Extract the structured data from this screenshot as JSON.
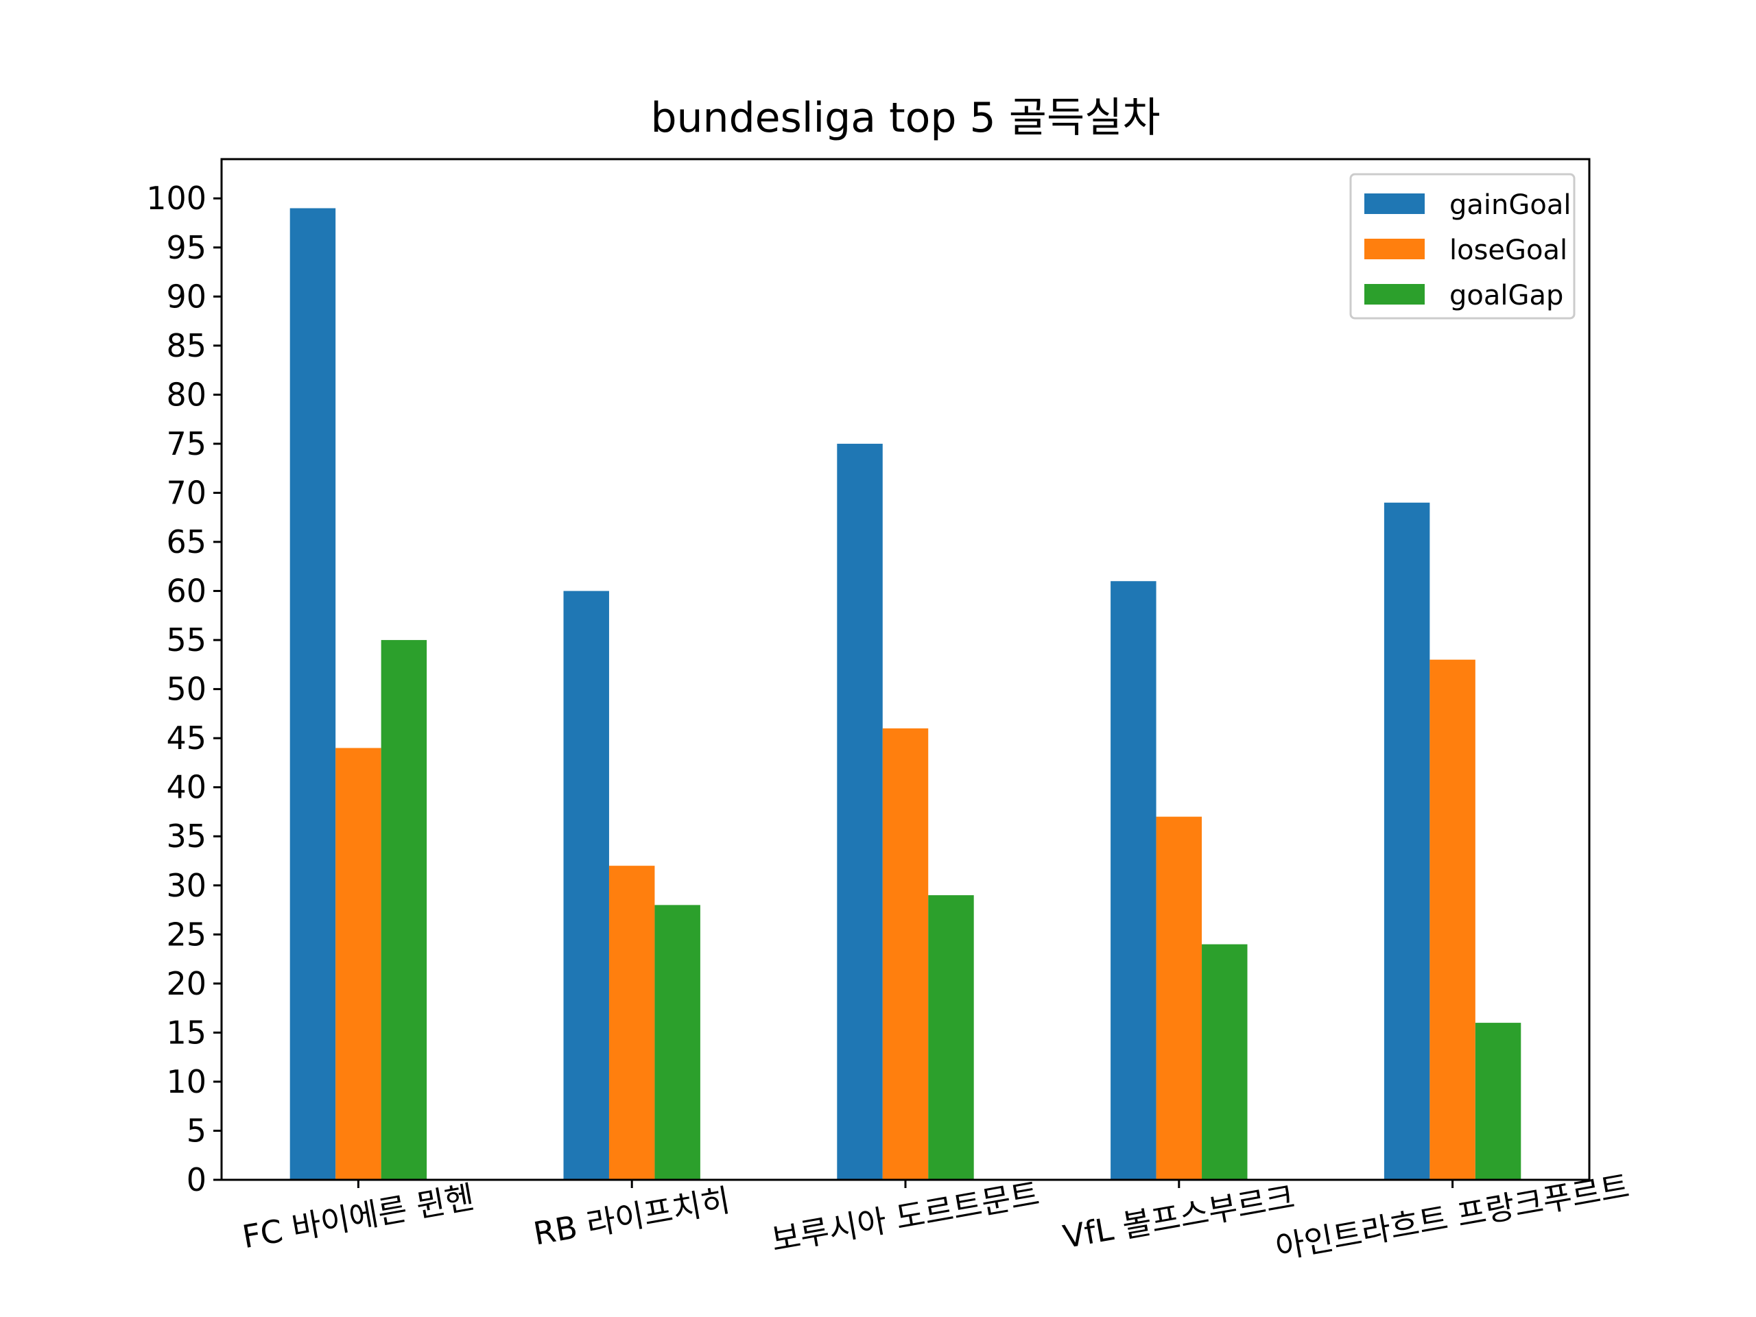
{
  "chart_data": {
    "type": "bar",
    "title": "bundesliga top 5 골득실차",
    "xlabel": "",
    "ylabel": "",
    "categories": [
      "FC 바이에른 뮌헨",
      "RB 라이프치히",
      "보루시아 도르트문트",
      "VfL 볼프스부르크",
      "아인트라흐트 프랑크푸르트"
    ],
    "series": [
      {
        "name": "gainGoal",
        "color": "#1f77b4",
        "values": [
          99,
          60,
          75,
          61,
          69
        ]
      },
      {
        "name": "loseGoal",
        "color": "#ff7f0e",
        "values": [
          44,
          32,
          46,
          37,
          53
        ]
      },
      {
        "name": "goalGap",
        "color": "#2ca02c",
        "values": [
          55,
          28,
          29,
          24,
          16
        ]
      }
    ],
    "ylim": [
      0,
      104
    ],
    "yticks": [
      0,
      5,
      10,
      15,
      20,
      25,
      30,
      35,
      40,
      45,
      50,
      55,
      60,
      65,
      70,
      75,
      80,
      85,
      90,
      95,
      100
    ],
    "grid": false,
    "legend_position": "top-right"
  }
}
